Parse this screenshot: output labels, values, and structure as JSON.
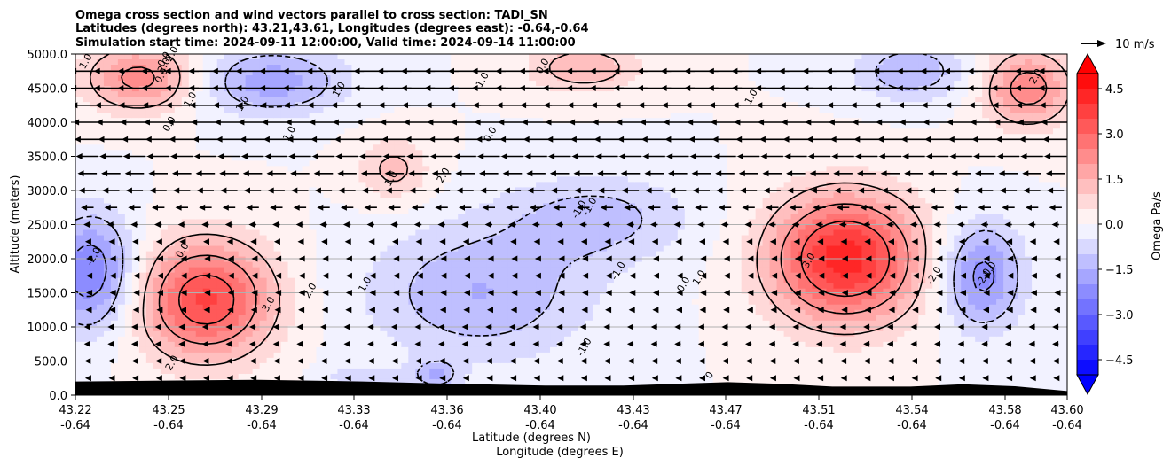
{
  "chart_data": {
    "type": "heatmap",
    "title_lines": [
      "Omega cross section and wind vectors parallel to cross section: TADI_SN",
      "Latitudes (degrees north): 43.21,43.61, Longitudes (degrees east): -0.64,-0.64",
      "Simulation start time: 2024-09-11 12:00:00, Valid time: 2024-09-14 11:00:00"
    ],
    "xlabel_lines": [
      "Latitude (degrees N)",
      "Longitude (degrees E)"
    ],
    "ylabel": "Altitude (meters)",
    "xlim": [
      43.22,
      43.6
    ],
    "ylim": [
      0,
      5000
    ],
    "x_ticks": [
      {
        "lat": "43.22",
        "lon": "-0.64"
      },
      {
        "lat": "43.25",
        "lon": "-0.64"
      },
      {
        "lat": "43.29",
        "lon": "-0.64"
      },
      {
        "lat": "43.33",
        "lon": "-0.64"
      },
      {
        "lat": "43.36",
        "lon": "-0.64"
      },
      {
        "lat": "43.40",
        "lon": "-0.64"
      },
      {
        "lat": "43.43",
        "lon": "-0.64"
      },
      {
        "lat": "43.47",
        "lon": "-0.64"
      },
      {
        "lat": "43.51",
        "lon": "-0.64"
      },
      {
        "lat": "43.54",
        "lon": "-0.64"
      },
      {
        "lat": "43.58",
        "lon": "-0.64"
      },
      {
        "lat": "43.60",
        "lon": "-0.64"
      }
    ],
    "y_ticks": [
      "0.0",
      "500.0",
      "1000.0",
      "1500.0",
      "2000.0",
      "2500.0",
      "3000.0",
      "3500.0",
      "4000.0",
      "4500.0",
      "5000.0"
    ],
    "y_tick_values": [
      0,
      500,
      1000,
      1500,
      2000,
      2500,
      3000,
      3500,
      4000,
      4500,
      5000
    ],
    "grid": "horizontal",
    "colorbar": {
      "label": "Omega Pa/s",
      "range": [
        -5.0,
        5.0
      ],
      "ticks": [
        "−4.5",
        "−3.0",
        "−1.5",
        "0.0",
        "1.5",
        "3.0",
        "4.5"
      ],
      "tick_values": [
        -4.5,
        -3.0,
        -1.5,
        0.0,
        1.5,
        3.0,
        4.5
      ],
      "levels": 20,
      "colormap": "bwr",
      "extend": "both"
    },
    "quiver_key": "10 m/s",
    "contour_labels": [
      "1.0",
      "2.0",
      "0.0",
      "1.0",
      "1.0",
      "1.0",
      "1.0",
      "1.0",
      "2.0",
      "0.0",
      "0.0",
      "0.0",
      "2.0",
      "1.0",
      "0.0",
      "-2.0",
      "0.0",
      "2.0",
      "3.0",
      "2.0",
      "1.0",
      "-1.0",
      "-1.0",
      "-1.0",
      "1.0",
      "0.0",
      "1.0",
      "3.0",
      "-1.0",
      "-2.0",
      "-2.0",
      "2.0",
      "-1.0",
      "0"
    ],
    "omega_field": [
      {
        "lat": 43.27,
        "alt": 1400,
        "amp": 3.6,
        "wlat": 0.018,
        "walt": 600
      },
      {
        "lat": 43.515,
        "alt": 2000,
        "amp": 4.3,
        "wlat": 0.02,
        "walt": 650
      },
      {
        "lat": 43.226,
        "alt": 1800,
        "amp": -2.6,
        "wlat": 0.012,
        "walt": 600
      },
      {
        "lat": 43.567,
        "alt": 1750,
        "amp": -2.3,
        "wlat": 0.011,
        "walt": 550
      },
      {
        "lat": 43.375,
        "alt": 1500,
        "amp": -1.5,
        "wlat": 0.03,
        "walt": 700
      },
      {
        "lat": 43.42,
        "alt": 2600,
        "amp": -1.2,
        "wlat": 0.025,
        "walt": 450
      },
      {
        "lat": 43.295,
        "alt": 4600,
        "amp": -1.8,
        "wlat": 0.02,
        "walt": 350
      },
      {
        "lat": 43.54,
        "alt": 4750,
        "amp": -1.5,
        "wlat": 0.015,
        "walt": 300
      },
      {
        "lat": 43.245,
        "alt": 4650,
        "amp": 2.3,
        "wlat": 0.015,
        "walt": 350
      },
      {
        "lat": 43.585,
        "alt": 4500,
        "amp": 2.4,
        "wlat": 0.012,
        "walt": 400
      },
      {
        "lat": 43.415,
        "alt": 4800,
        "amp": 1.5,
        "wlat": 0.015,
        "walt": 250
      },
      {
        "lat": 43.342,
        "alt": 3300,
        "amp": 1.2,
        "wlat": 0.01,
        "walt": 350
      },
      {
        "lat": 43.358,
        "alt": 300,
        "amp": -1.3,
        "wlat": 0.006,
        "walt": 150
      },
      {
        "lat": 43.33,
        "alt": 250,
        "amp": -0.9,
        "wlat": 0.01,
        "walt": 120
      }
    ],
    "terrain": [
      [
        43.22,
        200
      ],
      [
        43.25,
        210
      ],
      [
        43.29,
        225
      ],
      [
        43.33,
        200
      ],
      [
        43.36,
        170
      ],
      [
        43.4,
        140
      ],
      [
        43.43,
        140
      ],
      [
        43.47,
        190
      ],
      [
        43.49,
        165
      ],
      [
        43.51,
        125
      ],
      [
        43.54,
        125
      ],
      [
        43.56,
        160
      ],
      [
        43.58,
        130
      ],
      [
        43.6,
        60
      ]
    ],
    "wind": {
      "rows_alt": [
        250,
        500,
        750,
        1000,
        1250,
        1500,
        1750,
        2000,
        2250,
        2500,
        2750,
        3000,
        3250,
        3500,
        3750,
        4000,
        4250,
        4500,
        4750
      ],
      "row_speed": [
        0.4,
        0.5,
        0.6,
        0.6,
        0.3,
        0.2,
        0.2,
        0.2,
        0.4,
        0.7,
        1.2,
        1.6,
        1.8,
        2.1,
        2.4,
        2.7,
        3.0,
        3.2,
        3.2
      ],
      "x_count": 42
    }
  }
}
